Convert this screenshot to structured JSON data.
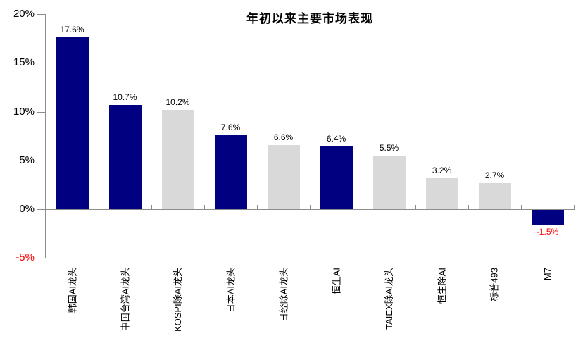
{
  "chart_data": {
    "type": "bar",
    "title": "年初以来主要市场表现",
    "categories": [
      "韩国AI龙头",
      "中国台湾AI龙头",
      "KOSPI除AI龙头",
      "日本AI龙头",
      "日经除AI龙头",
      "恒生AI",
      "TAIEX除AI龙头",
      "恒生除AI",
      "标普493",
      "M7"
    ],
    "values": [
      17.6,
      10.7,
      10.2,
      7.6,
      6.6,
      6.4,
      5.5,
      3.2,
      2.7,
      -1.5
    ],
    "data_labels": [
      "17.6%",
      "10.7%",
      "10.2%",
      "7.6%",
      "6.6%",
      "6.4%",
      "5.5%",
      "3.2%",
      "2.7%",
      "-1.5%"
    ],
    "bar_color_keys": [
      "navy",
      "navy",
      "gray",
      "navy",
      "gray",
      "navy",
      "gray",
      "gray",
      "gray",
      "navy"
    ],
    "yticks": [
      {
        "label": "20%",
        "value": 20,
        "negative": false
      },
      {
        "label": "15%",
        "value": 15,
        "negative": false
      },
      {
        "label": "10%",
        "value": 10,
        "negative": false
      },
      {
        "label": "5%",
        "value": 5,
        "negative": false
      },
      {
        "label": "0%",
        "value": 0,
        "negative": false
      },
      {
        "label": "-5%",
        "value": -5,
        "negative": true
      }
    ],
    "ylim": [
      -5,
      20
    ],
    "xlabel": "",
    "ylabel": "",
    "grid": false,
    "legend": false,
    "colors": {
      "navy": "#000080",
      "gray": "#d9d9d9",
      "axis": "#8c8c8c",
      "label_text": "#000000",
      "negative_text": "#ff0000"
    }
  }
}
